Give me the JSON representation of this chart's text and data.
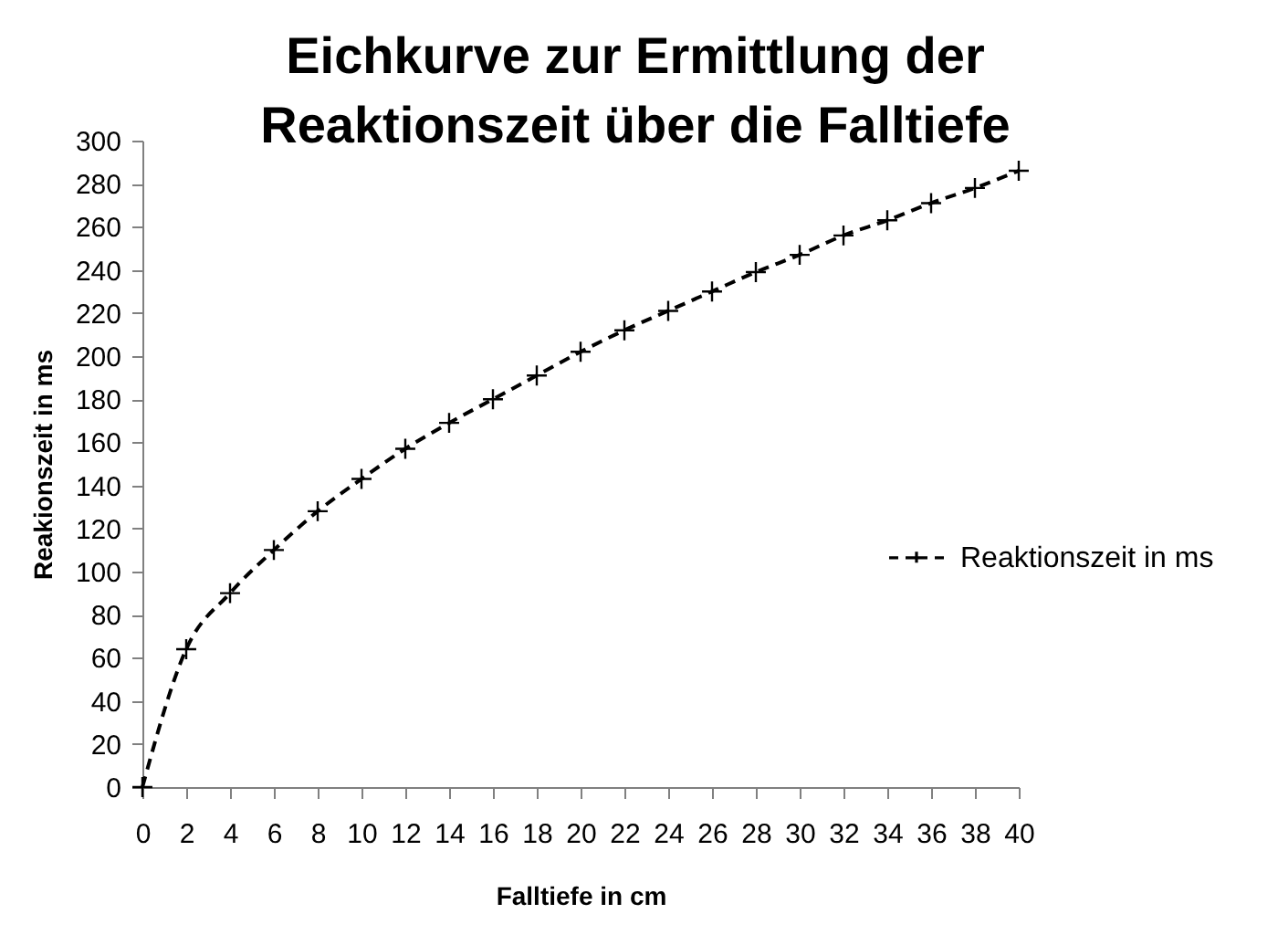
{
  "chart_data": {
    "type": "line",
    "title": "Eichkurve zur Ermittlung der Reaktionszeit über die Falltiefe",
    "xlabel": "Falltiefe in cm",
    "ylabel": "Reakionszeit in ms",
    "x": [
      0,
      2,
      4,
      6,
      8,
      10,
      12,
      14,
      16,
      18,
      20,
      22,
      24,
      26,
      28,
      30,
      32,
      34,
      36,
      38,
      40
    ],
    "series": [
      {
        "name": "Reaktionszeit in ms",
        "color": "#000000",
        "values": [
          0,
          64,
          90,
          110,
          128,
          143,
          157,
          169,
          180,
          191,
          202,
          212,
          221,
          230,
          239,
          247,
          256,
          263,
          271,
          278,
          286
        ]
      }
    ],
    "xlim": [
      0,
      40
    ],
    "xticks": [
      0,
      2,
      4,
      6,
      8,
      10,
      12,
      14,
      16,
      18,
      20,
      22,
      24,
      26,
      28,
      30,
      32,
      34,
      36,
      38,
      40
    ],
    "ylim": [
      0,
      300
    ],
    "yticks": [
      0,
      20,
      40,
      60,
      80,
      100,
      120,
      140,
      160,
      180,
      200,
      220,
      240,
      260,
      280,
      300
    ],
    "legend": "right",
    "marker": "cross",
    "line_style": "dashed"
  }
}
